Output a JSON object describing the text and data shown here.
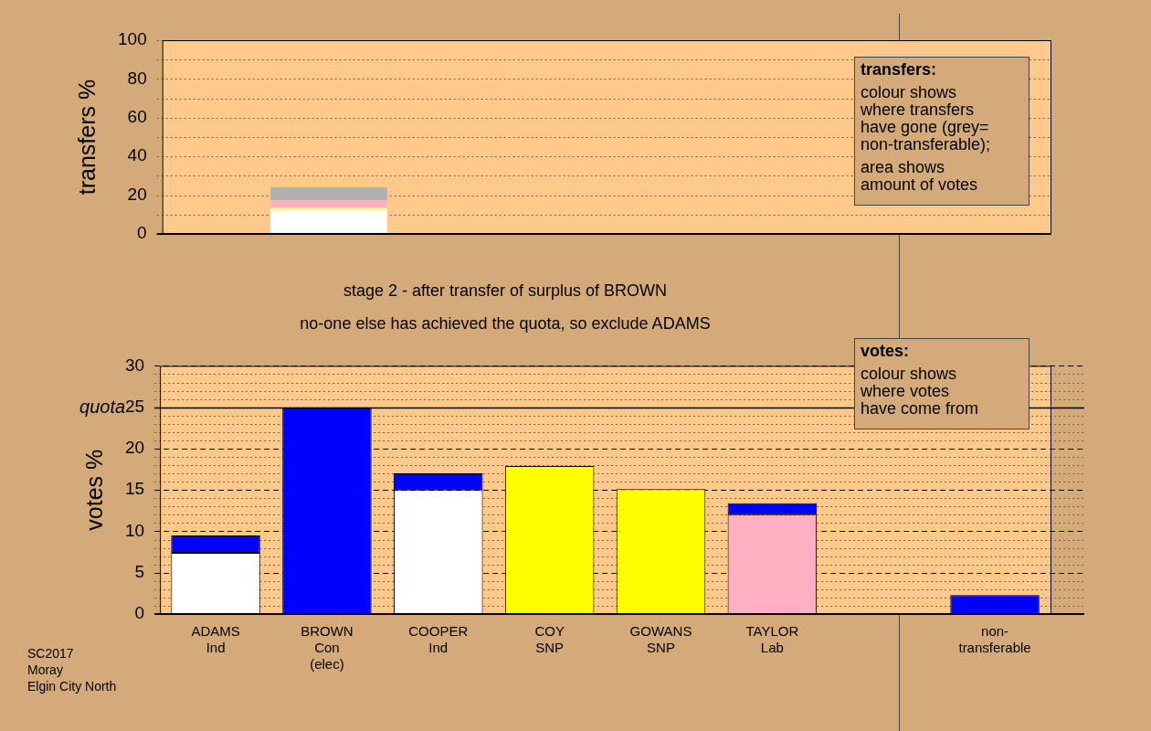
{
  "chart_data": [
    {
      "type": "bar",
      "categories": [
        null,
        null,
        null,
        null,
        null,
        null,
        null,
        null
      ],
      "stacked": true,
      "ylabel": "transfers %",
      "ylim": [
        0,
        100
      ],
      "yticks": [
        0,
        {
          "value": 10,
          "label": null
        },
        20,
        {
          "value": 30,
          "label": null
        },
        40,
        {
          "value": 50,
          "label": null
        },
        60,
        {
          "value": 70,
          "label": null
        },
        80,
        {
          "value": 90,
          "label": null
        },
        100
      ],
      "grid": "y",
      "legend": false,
      "tick_labels": "y",
      "series": [
        {
          "color": "#ffffff",
          "values": [
            null,
            12.1,
            null,
            null,
            null,
            null,
            null,
            null
          ]
        },
        {
          "color": "#ffff80",
          "values": [
            null,
            1.4,
            null,
            null,
            null,
            null,
            null,
            null
          ]
        },
        {
          "color": "#ffb0c0",
          "values": [
            null,
            3.8,
            null,
            null,
            null,
            null,
            null,
            null
          ]
        },
        {
          "color": "#b0b0b0",
          "values": [
            null,
            6.8,
            null,
            null,
            null,
            null,
            null,
            null
          ]
        }
      ],
      "annotations": [
        "transfers:",
        "colour shows\nwhere transfers\nhave gone (grey=\nnon-transferable);",
        "area shows\namount of votes"
      ]
    },
    {
      "type": "bar",
      "title": "stage 2 - after transfer of surplus of BROWN",
      "subtitle": "no-one else has achieved the quota, so exclude ADAMS",
      "categories": [
        "ADAMS\nInd",
        "BROWN\nCon\n(elec)",
        "COOPER\nInd",
        "COY\nSNP",
        "GOWANS\nSNP",
        "TAYLOR\nLab",
        null,
        "non-\ntransferable"
      ],
      "stacked": true,
      "ylabel": "votes %",
      "ylim": [
        0,
        30
      ],
      "yticks": [
        0,
        {
          "value": 1,
          "label": null
        },
        {
          "value": 2,
          "label": null
        },
        {
          "value": 3,
          "label": null
        },
        {
          "value": 4,
          "label": null
        },
        5,
        {
          "value": 6,
          "label": null
        },
        {
          "value": 7,
          "label": null
        },
        {
          "value": 8,
          "label": null
        },
        {
          "value": 9,
          "label": null
        },
        10,
        {
          "value": 11,
          "label": null
        },
        {
          "value": 12,
          "label": null
        },
        {
          "value": 13,
          "label": null
        },
        {
          "value": 14,
          "label": null
        },
        15,
        {
          "value": 16,
          "label": null
        },
        {
          "value": 17,
          "label": null
        },
        {
          "value": 18,
          "label": null
        },
        {
          "value": 19,
          "label": null
        },
        20,
        {
          "value": 21,
          "label": null
        },
        {
          "value": 22,
          "label": null
        },
        {
          "value": 23,
          "label": null
        },
        {
          "value": 24,
          "label": null
        },
        25,
        {
          "value": 26,
          "label": null
        },
        {
          "value": 27,
          "label": null
        },
        {
          "value": 28,
          "label": null
        },
        {
          "value": 29,
          "label": null
        },
        30
      ],
      "grid": "y",
      "legend": false,
      "ref_lines": [
        {
          "axis": "y",
          "value": 25,
          "label": "quota",
          "color": "#000000"
        }
      ],
      "series": [
        {
          "color": "#ffffff",
          "values": [
            7.4,
            null,
            15,
            null,
            null,
            null,
            null,
            null
          ]
        },
        {
          "color": "#ffff00",
          "values": [
            null,
            null,
            null,
            17.9,
            15.1,
            null,
            null,
            null
          ]
        },
        {
          "color": "#ffb0c0",
          "values": [
            null,
            null,
            null,
            null,
            null,
            12,
            null,
            null
          ]
        },
        {
          "color": "#0000ff",
          "values": [
            2.1,
            25,
            2,
            null,
            null,
            1.4,
            null,
            2.3
          ]
        }
      ],
      "annotations": [
        "SC2017\nMoray\nElgin City North",
        "votes:",
        "colour shows\nwhere votes\nhave come from"
      ]
    }
  ]
}
